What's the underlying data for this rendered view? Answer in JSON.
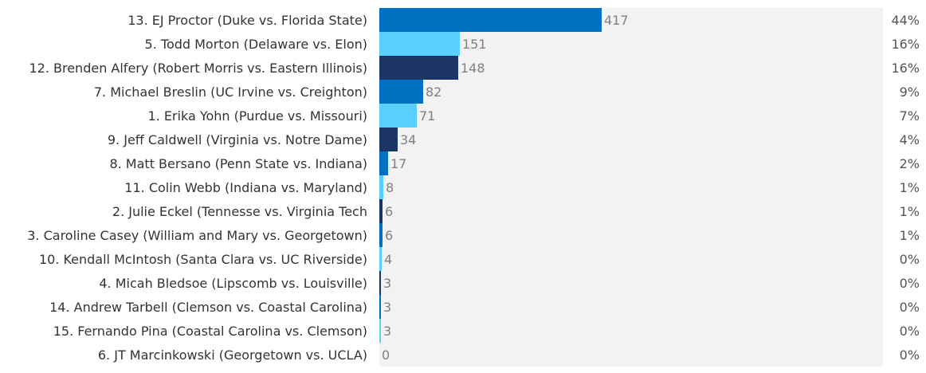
{
  "chart_data": {
    "type": "bar",
    "orientation": "horizontal",
    "max_value": 945,
    "colors": [
      "#0070c0",
      "#5bcfff",
      "#1a3566"
    ],
    "items": [
      {
        "label": "13. EJ Proctor (Duke vs. Florida State)",
        "value": 417,
        "percent": "44%"
      },
      {
        "label": "5. Todd Morton (Delaware vs. Elon)",
        "value": 151,
        "percent": "16%"
      },
      {
        "label": "12. Brenden Alfery (Robert Morris vs. Eastern Illinois)",
        "value": 148,
        "percent": "16%"
      },
      {
        "label": "7. Michael Breslin (UC Irvine vs. Creighton)",
        "value": 82,
        "percent": "9%"
      },
      {
        "label": "1. Erika Yohn (Purdue vs. Missouri)",
        "value": 71,
        "percent": "7%"
      },
      {
        "label": "9. Jeff Caldwell (Virginia vs. Notre Dame)",
        "value": 34,
        "percent": "4%"
      },
      {
        "label": "8. Matt Bersano (Penn State vs. Indiana)",
        "value": 17,
        "percent": "2%"
      },
      {
        "label": "11. Colin Webb (Indiana vs. Maryland)",
        "value": 8,
        "percent": "1%"
      },
      {
        "label": "2. Julie Eckel (Tennesse vs. Virginia Tech",
        "value": 6,
        "percent": "1%"
      },
      {
        "label": "3. Caroline Casey (William and Mary vs. Georgetown)",
        "value": 6,
        "percent": "1%"
      },
      {
        "label": "10. Kendall McIntosh (Santa Clara vs. UC Riverside)",
        "value": 4,
        "percent": "0%"
      },
      {
        "label": "4. Micah Bledsoe (Lipscomb vs. Louisville)",
        "value": 3,
        "percent": "0%"
      },
      {
        "label": "14. Andrew Tarbell (Clemson vs. Coastal Carolina)",
        "value": 3,
        "percent": "0%"
      },
      {
        "label": "15. Fernando Pina (Coastal Carolina vs. Clemson)",
        "value": 3,
        "percent": "0%"
      },
      {
        "label": "6. JT Marcinkowski (Georgetown vs. UCLA)",
        "value": 0,
        "percent": "0%"
      }
    ]
  }
}
